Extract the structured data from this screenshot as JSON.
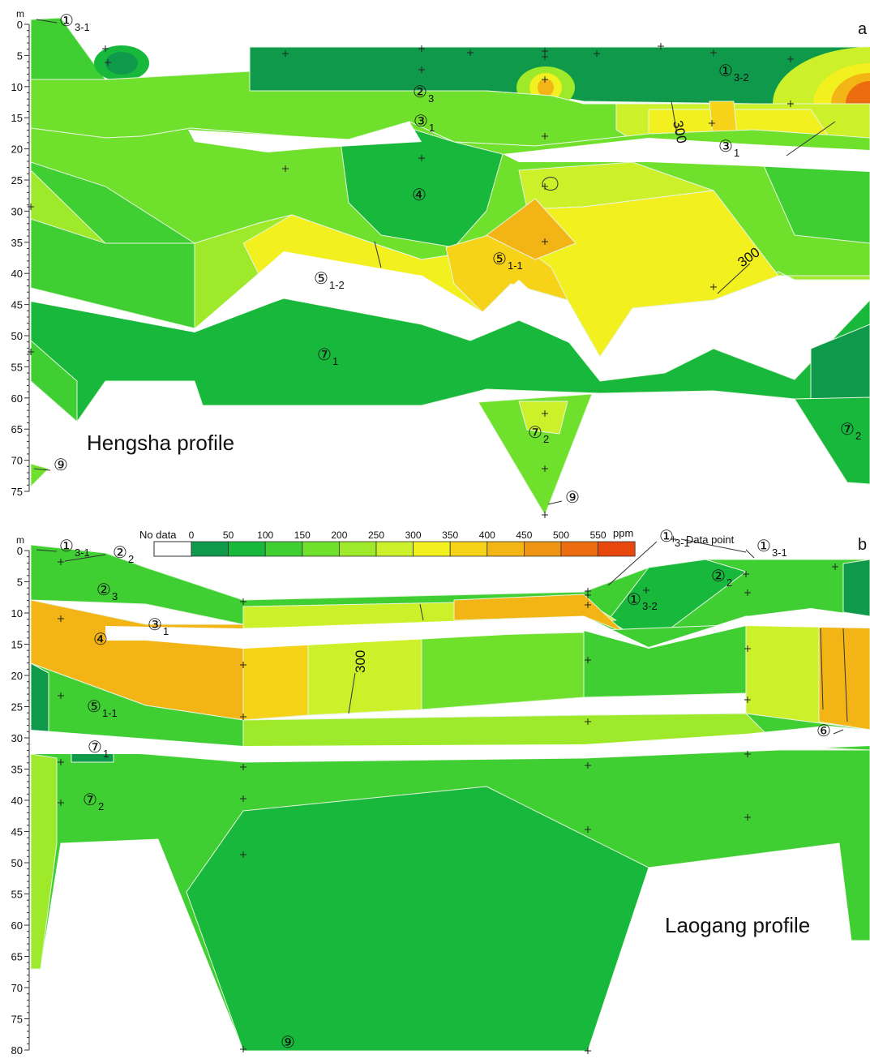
{
  "figure": {
    "panels": [
      {
        "id": "a",
        "letter": "a",
        "profile_label": "Hengsha profile",
        "depth_unit": "m",
        "depth_ticks": [
          0,
          5,
          10,
          15,
          20,
          25,
          30,
          35,
          40,
          45,
          50,
          55,
          60,
          65,
          70,
          75
        ],
        "layers": [
          {
            "circled": "①",
            "sub": "3-1"
          },
          {
            "circled": "①",
            "sub": "3-2"
          },
          {
            "circled": "②",
            "sub": "3"
          },
          {
            "circled": "③",
            "sub": "1"
          },
          {
            "circled": "③",
            "sub": "1"
          },
          {
            "circled": "④",
            "sub": ""
          },
          {
            "circled": "⑤",
            "sub": "1-1"
          },
          {
            "circled": "⑤",
            "sub": "1-2"
          },
          {
            "circled": "⑦",
            "sub": "1"
          },
          {
            "circled": "⑦",
            "sub": "2"
          },
          {
            "circled": "⑦",
            "sub": "2"
          },
          {
            "circled": "⑨",
            "sub": ""
          },
          {
            "circled": "⑨",
            "sub": ""
          }
        ],
        "contour_labels": [
          "300",
          "300"
        ]
      },
      {
        "id": "b",
        "letter": "b",
        "profile_label": "Laogang profile",
        "depth_unit": "m",
        "depth_ticks": [
          0,
          5,
          10,
          15,
          20,
          25,
          30,
          35,
          40,
          45,
          50,
          55,
          60,
          65,
          70,
          75,
          80
        ],
        "layers": [
          {
            "circled": "①",
            "sub": "3-1"
          },
          {
            "circled": "②",
            "sub": "2"
          },
          {
            "circled": "②",
            "sub": "3"
          },
          {
            "circled": "③",
            "sub": "1"
          },
          {
            "circled": "④",
            "sub": ""
          },
          {
            "circled": "⑤",
            "sub": "1-1"
          },
          {
            "circled": "⑦",
            "sub": "1"
          },
          {
            "circled": "⑦",
            "sub": "2"
          },
          {
            "circled": "①",
            "sub": "3-1"
          },
          {
            "circled": "①",
            "sub": "3-1"
          },
          {
            "circled": "②",
            "sub": "2"
          },
          {
            "circled": "①",
            "sub": "3-2"
          },
          {
            "circled": "⑥",
            "sub": ""
          },
          {
            "circled": "⑨",
            "sub": ""
          }
        ],
        "contour_labels": [
          "300"
        ]
      }
    ]
  },
  "legend": {
    "no_data_label": "No data",
    "unit": "ppm",
    "data_point_label": "Data point",
    "tick_labels": [
      "0",
      "50",
      "100",
      "150",
      "200",
      "250",
      "300",
      "350",
      "400",
      "450",
      "500",
      "550"
    ],
    "no_data_color": "#ffffff",
    "colors": [
      "#0e9a4a",
      "#18b83c",
      "#3fcf33",
      "#6fe02c",
      "#9eea2a",
      "#ccf12a",
      "#f2f01f",
      "#f6d219",
      "#f3b515",
      "#ef9312",
      "#ec6d10",
      "#e8470d"
    ]
  },
  "chart_data": {
    "type": "heatmap",
    "variable": "concentration",
    "unit": "ppm",
    "color_scale_bins": [
      0,
      50,
      100,
      150,
      200,
      250,
      300,
      350,
      400,
      450,
      500,
      550,
      600
    ],
    "contour_level": 300,
    "panels": [
      {
        "id": "a",
        "title": "Hengsha profile",
        "ylabel": "m",
        "ylim": [
          0,
          75
        ],
        "y_ticks": [
          0,
          5,
          10,
          15,
          20,
          25,
          30,
          35,
          40,
          45,
          50,
          55,
          60,
          65,
          70,
          75
        ]
      },
      {
        "id": "b",
        "title": "Laogang profile",
        "ylabel": "m",
        "ylim": [
          0,
          80
        ],
        "y_ticks": [
          0,
          5,
          10,
          15,
          20,
          25,
          30,
          35,
          40,
          45,
          50,
          55,
          60,
          65,
          70,
          75,
          80
        ]
      }
    ]
  }
}
